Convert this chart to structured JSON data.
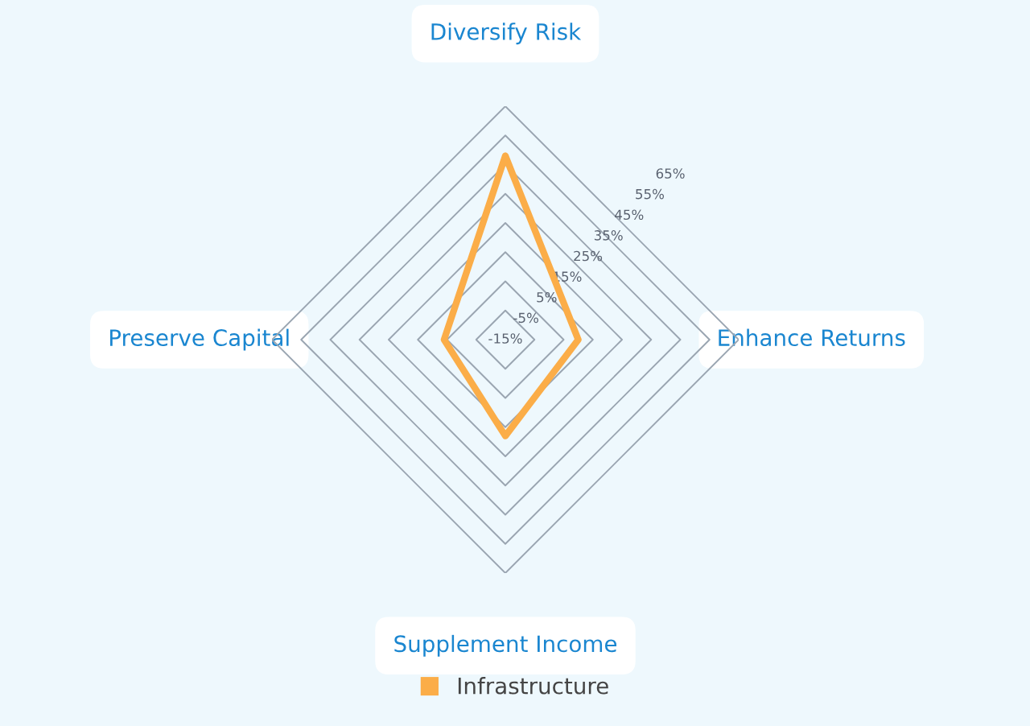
{
  "chart_data": {
    "type": "radar",
    "categories": [
      "Diversify Risk",
      "Enhance Returns",
      "Supplement Income",
      "Preserve Capital"
    ],
    "series": [
      {
        "name": "Infrastructure",
        "color": "#fbad48",
        "values": [
          48,
          10,
          18,
          6
        ]
      }
    ],
    "ylim": [
      -15,
      65
    ],
    "yticks": [
      {
        "value": -15,
        "label": "-15%"
      },
      {
        "value": -5,
        "label": "-5%"
      },
      {
        "value": 5,
        "label": "5%"
      },
      {
        "value": 15,
        "label": "15%"
      },
      {
        "value": 25,
        "label": "25%"
      },
      {
        "value": 35,
        "label": "35%"
      },
      {
        "value": 45,
        "label": "45%"
      },
      {
        "value": 55,
        "label": "55%"
      },
      {
        "value": 65,
        "label": "65%"
      }
    ],
    "grid": true,
    "legend": "bottom",
    "marker": "none",
    "line_style": "solid"
  }
}
